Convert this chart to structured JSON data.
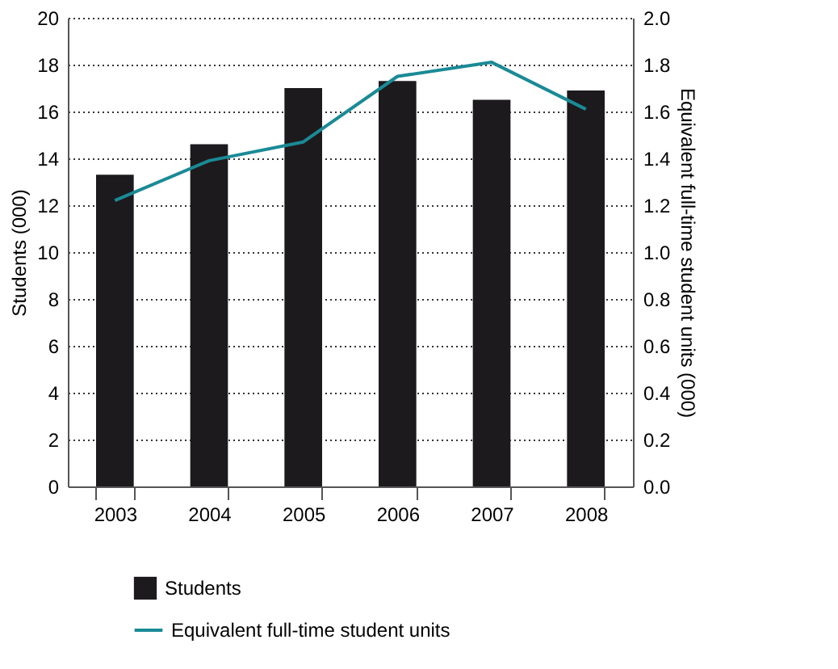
{
  "chart_data": {
    "type": "bar",
    "categories": [
      "2003",
      "2004",
      "2005",
      "2006",
      "2007",
      "2008"
    ],
    "series": [
      {
        "name": "Students",
        "type": "bar",
        "color": "#1c1a1d",
        "values": [
          13.3,
          14.6,
          17.0,
          17.3,
          16.5,
          16.9
        ]
      },
      {
        "name": "Equivalent full-time student units",
        "type": "line",
        "axis": "y2",
        "color": "#1a8a96",
        "values": [
          1.22,
          1.39,
          1.47,
          1.75,
          1.81,
          1.61
        ]
      }
    ],
    "ylabel": "Students (000)",
    "y2label": "Equivalent full-time student units (000)",
    "ylim": [
      0,
      20
    ],
    "yticks": [
      0,
      2,
      4,
      6,
      8,
      10,
      12,
      14,
      16,
      18,
      20
    ],
    "y2lim": [
      0,
      2.0
    ],
    "y2ticks": [
      {
        "value": 0,
        "label": "0.0"
      },
      {
        "value": 0.2,
        "label": "0.2"
      },
      {
        "value": 0.4,
        "label": "0.4"
      },
      {
        "value": 0.6,
        "label": "0.6"
      },
      {
        "value": 0.8,
        "label": "0.8"
      },
      {
        "value": 1.0,
        "label": "1.0"
      },
      {
        "value": 1.2,
        "label": "1.2"
      },
      {
        "value": 1.4,
        "label": "1.4"
      },
      {
        "value": 1.6,
        "label": "1.6"
      },
      {
        "value": 1.8,
        "label": "1.8"
      },
      {
        "value": 2.0,
        "label": "2.0"
      }
    ],
    "grid": "y",
    "legend": "bottom",
    "line_style": "solid",
    "marker": "none"
  }
}
